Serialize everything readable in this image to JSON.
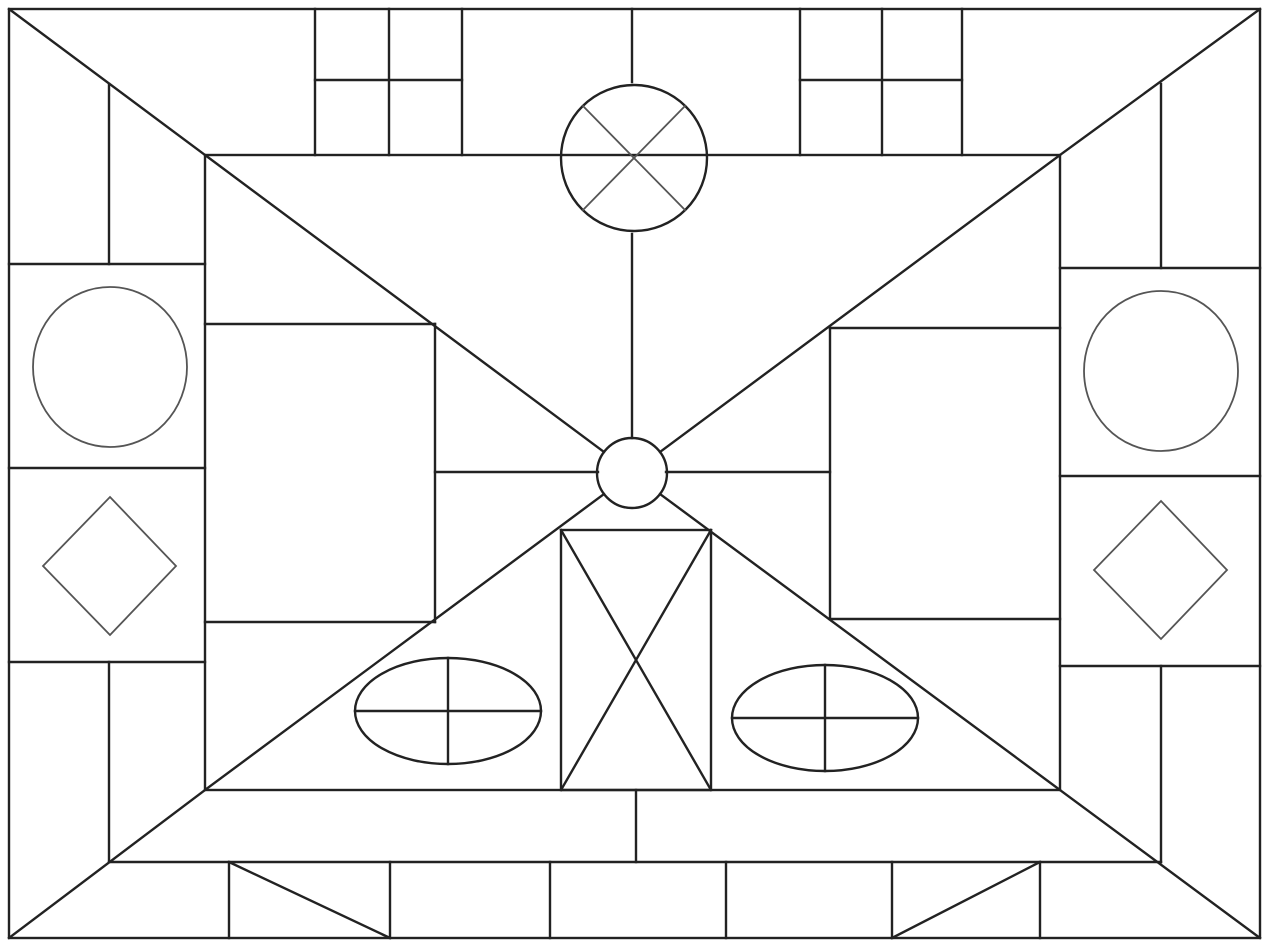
{
  "artwork": {
    "kind": "coloring-page",
    "colors": {
      "background": "#ffffff",
      "stroke": "#222222",
      "shape_stroke": "#555555"
    },
    "motifs": [
      "outer-frame",
      "corner-diagonals",
      "top-circle-with-cross",
      "center-circle",
      "left-circle",
      "right-circle",
      "left-diamond",
      "right-diamond",
      "left-ellipse-with-cross",
      "right-ellipse-with-cross",
      "center-rectangle-with-x",
      "bottom-left-triangle",
      "bottom-right-triangle"
    ]
  }
}
